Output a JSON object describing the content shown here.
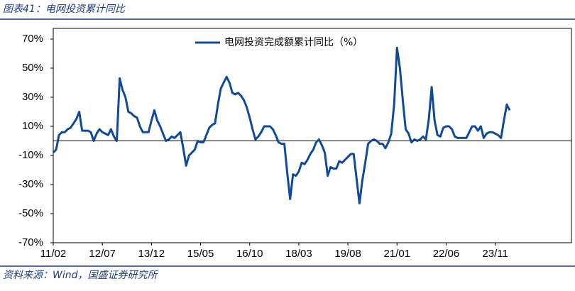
{
  "header": {
    "title": "图表41：电网投资累计同比"
  },
  "source": "资料来源：Wind，国盛证券研究所",
  "chart_data": {
    "type": "line",
    "categories": [
      "11/02",
      null,
      null,
      null,
      null,
      null,
      null,
      null,
      null,
      null,
      null,
      null,
      null,
      null,
      null,
      null,
      null,
      "12/07",
      null,
      null,
      null,
      null,
      null,
      null,
      null,
      null,
      null,
      null,
      null,
      null,
      null,
      null,
      null,
      null,
      "13/12",
      null,
      null,
      null,
      null,
      null,
      null,
      null,
      null,
      null,
      null,
      null,
      null,
      null,
      null,
      null,
      null,
      "15/05",
      null,
      null,
      null,
      null,
      null,
      null,
      null,
      null,
      null,
      null,
      null,
      null,
      null,
      null,
      null,
      null,
      "16/10",
      null,
      null,
      null,
      null,
      null,
      null,
      null,
      null,
      null,
      null,
      null,
      null,
      null,
      null,
      null,
      null,
      "18/03",
      null,
      null,
      null,
      null,
      null,
      null,
      null,
      null,
      null,
      null,
      null,
      null,
      null,
      null,
      null,
      null,
      "19/08",
      null,
      null,
      null,
      null,
      null,
      null,
      null,
      null,
      null,
      null,
      null,
      null,
      null,
      null,
      null,
      null,
      "21/01",
      null,
      null,
      null,
      null,
      null,
      null,
      null,
      null,
      null,
      null,
      null,
      null,
      null,
      null,
      null,
      null,
      "22/06",
      null,
      null,
      null,
      null,
      null,
      null,
      null,
      null,
      null,
      null,
      null,
      null,
      null,
      null,
      null,
      null,
      "23/11",
      null,
      null,
      null,
      null,
      null
    ],
    "series": [
      {
        "name": "电网投资完成额累计同比（%）",
        "color": "#0f4a9e",
        "values": [
          -8,
          -6,
          4,
          6,
          6,
          8,
          9,
          12,
          15,
          20,
          7,
          7,
          7,
          6,
          0,
          5,
          8,
          6,
          5,
          4,
          8,
          3,
          0,
          43,
          35,
          30,
          20,
          19,
          17,
          16,
          10,
          6,
          6,
          6,
          14,
          21,
          14,
          10,
          5,
          0,
          1,
          3,
          2,
          4,
          6,
          -5,
          -17,
          -10,
          -8,
          -6,
          0,
          -1,
          -1,
          4,
          9,
          11,
          12,
          25,
          36,
          40,
          44,
          40,
          33,
          32,
          33,
          31,
          28,
          23,
          16,
          8,
          1,
          3,
          6,
          10,
          10,
          10,
          8,
          4,
          -1,
          -2,
          -2,
          -22,
          -40,
          -23,
          -24,
          -21,
          -15,
          -16,
          -13,
          -9,
          -6,
          -1,
          1,
          -3,
          -8,
          -24,
          -18,
          -19,
          -19,
          -14,
          -15,
          -13,
          -11,
          -9,
          -9,
          -26,
          -43,
          -27,
          -15,
          -2,
          0,
          1,
          0,
          -2,
          -2,
          -5,
          -1,
          5,
          25,
          64,
          50,
          28,
          8,
          5,
          -1,
          1,
          0,
          1,
          3,
          1,
          15,
          37,
          14,
          4,
          3,
          9,
          10,
          10,
          8,
          3,
          2,
          2,
          2,
          2,
          6,
          10,
          10,
          7,
          10,
          2,
          5,
          6,
          6,
          5,
          4,
          2,
          14,
          25,
          21
        ]
      }
    ],
    "ylim": [
      -70,
      70
    ],
    "yticks": [
      {
        "value": -70,
        "label": "-70%"
      },
      {
        "value": -50,
        "label": "-50%"
      },
      {
        "value": -30,
        "label": "-30%"
      },
      {
        "value": -10,
        "label": "-10%"
      },
      {
        "value": 10,
        "label": "10%"
      },
      {
        "value": 30,
        "label": "30%"
      },
      {
        "value": 50,
        "label": "50%"
      },
      {
        "value": 70,
        "label": "70%"
      }
    ],
    "legend": "top"
  }
}
